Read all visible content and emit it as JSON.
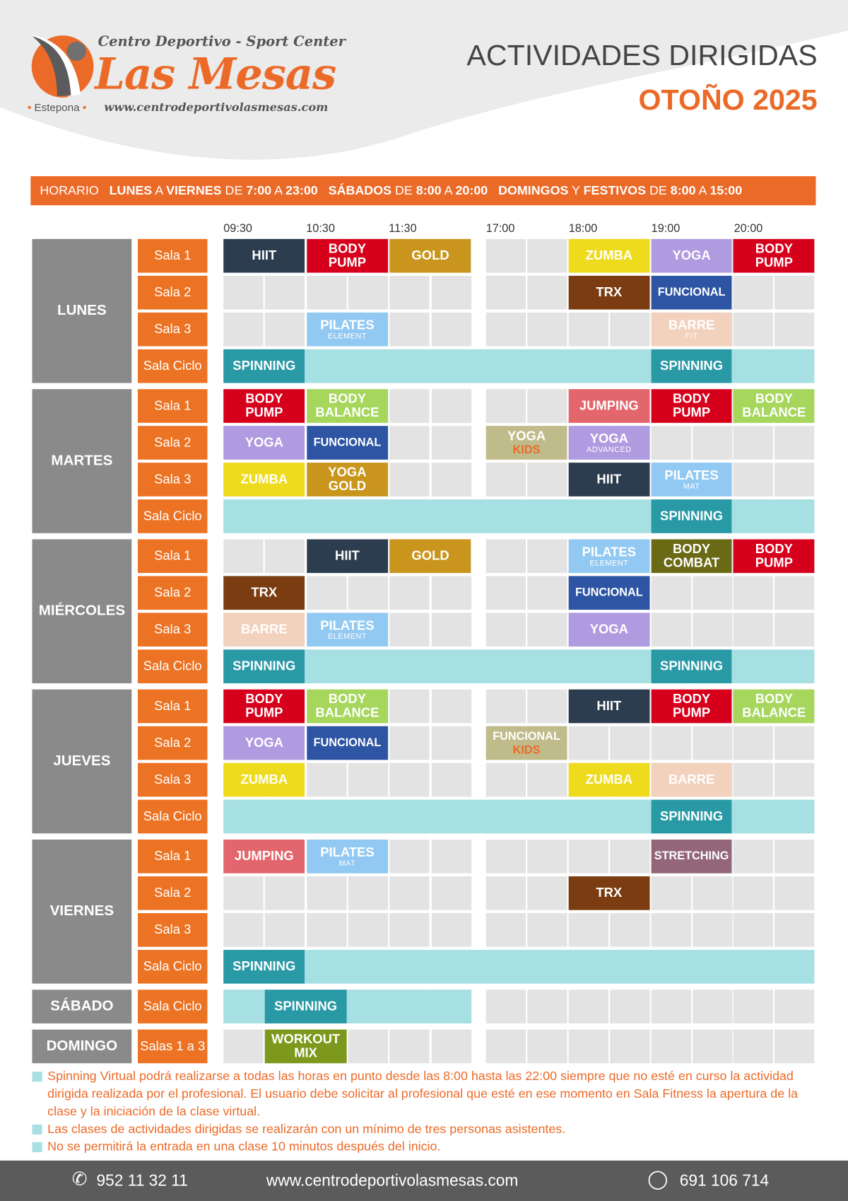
{
  "brand": {
    "tagline": "Centro Deportivo - Sport Center",
    "name": "Las Mesas",
    "location": "Estepona",
    "website": "www.centrodeportivolasmesas.com"
  },
  "title": "ACTIVIDADES DIRIGIDAS",
  "season": "OTOÑO 2025",
  "hours": {
    "label": "HORARIO",
    "weekdays": "LUNES",
    "a1": "A",
    "weekdays2": "VIERNES",
    "de1": "DE",
    "wk_time": "7:00",
    "a2": "A",
    "wk_end": "23:00",
    "sat": "SÁBADOS",
    "de2": "DE",
    "sat_time": "8:00",
    "a3": "A",
    "sat_end": "20:00",
    "sun": "DOMINGOS",
    "y": "Y",
    "fest": "FESTIVOS",
    "de3": "DE",
    "sun_time": "8:00",
    "a4": "A",
    "sun_end": "15:00"
  },
  "time_headers": [
    "09:30",
    "10:30",
    "11:30",
    "17:00",
    "18:00",
    "19:00",
    "20:00"
  ],
  "colors": {
    "HIIT": "#2b3d4f",
    "BODY PUMP": "#d6001c",
    "GOLD": "#c9951c",
    "ZUMBA": "#efdb1e",
    "YOGA": "#b09ae0",
    "TRX": "#7a3c10",
    "FUNCIONAL": "#2e55a3",
    "PILATES": "#92c9f2",
    "BARRE": "#f3d2bd",
    "SPINNING": "#2a99a6",
    "BODY BALANCE": "#a6d65c",
    "JUMPING": "#e3666c",
    "KIDS": "#c0bb8a",
    "BODY COMBAT": "#6a6914",
    "STRETCHING": "#93667a",
    "WORKOUT MIX": "#7c991d",
    "cyan": "#a6e0e3"
  },
  "schedule": [
    {
      "day": "LUNES",
      "rooms": [
        {
          "room": "Sala 1",
          "blocks": [
            {
              "s": 0,
              "label": "HIIT",
              "c": "HIIT"
            },
            {
              "s": 2,
              "label": "BODY PUMP",
              "c": "BODY PUMP"
            },
            {
              "s": 4,
              "label": "GOLD",
              "c": "GOLD"
            },
            {
              "s": 8,
              "label": "ZUMBA",
              "c": "ZUMBA"
            },
            {
              "s": 10,
              "label": "YOGA",
              "c": "YOGA"
            },
            {
              "s": 12,
              "label": "BODY PUMP",
              "c": "BODY PUMP"
            }
          ]
        },
        {
          "room": "Sala 2",
          "blocks": [
            {
              "s": 8,
              "label": "TRX",
              "c": "TRX"
            },
            {
              "s": 10,
              "label": "FUNCIONAL",
              "c": "FUNCIONAL"
            }
          ]
        },
        {
          "room": "Sala 3",
          "blocks": [
            {
              "s": 2,
              "label": "PILATES",
              "sub": "ELEMENT",
              "c": "PILATES"
            },
            {
              "s": 10,
              "label": "BARRE",
              "sub": "FIT",
              "c": "BARRE"
            }
          ]
        },
        {
          "room": "Sala Ciclo",
          "cyan": [
            0,
            13
          ],
          "blocks": [
            {
              "s": 0,
              "label": "SPINNING",
              "c": "SPINNING"
            },
            {
              "s": 10,
              "label": "SPINNING",
              "c": "SPINNING"
            }
          ]
        }
      ]
    },
    {
      "day": "MARTES",
      "rooms": [
        {
          "room": "Sala 1",
          "blocks": [
            {
              "s": 0,
              "label": "BODY PUMP",
              "c": "BODY PUMP"
            },
            {
              "s": 2,
              "label": "BODY BALANCE",
              "c": "BODY BALANCE"
            },
            {
              "s": 8,
              "label": "JUMPING",
              "c": "JUMPING"
            },
            {
              "s": 10,
              "label": "BODY PUMP",
              "c": "BODY PUMP"
            },
            {
              "s": 12,
              "label": "BODY BALANCE",
              "c": "BODY BALANCE"
            }
          ]
        },
        {
          "room": "Sala 2",
          "blocks": [
            {
              "s": 0,
              "label": "YOGA",
              "c": "YOGA"
            },
            {
              "s": 2,
              "label": "FUNCIONAL",
              "c": "FUNCIONAL"
            },
            {
              "s": 6,
              "label": "YOGA",
              "kids": "KIDS",
              "c": "KIDS"
            },
            {
              "s": 8,
              "label": "YOGA",
              "sub": "ADVANCED",
              "c": "YOGA"
            }
          ]
        },
        {
          "room": "Sala 3",
          "blocks": [
            {
              "s": 0,
              "label": "ZUMBA",
              "c": "ZUMBA"
            },
            {
              "s": 2,
              "label": "YOGA GOLD",
              "c": "GOLD"
            },
            {
              "s": 8,
              "label": "HIIT",
              "c": "HIIT"
            },
            {
              "s": 10,
              "label": "PILATES",
              "sub": "MAT",
              "c": "PILATES"
            }
          ]
        },
        {
          "room": "Sala Ciclo",
          "cyan": [
            0,
            13
          ],
          "blocks": [
            {
              "s": 10,
              "label": "SPINNING",
              "c": "SPINNING"
            }
          ]
        }
      ]
    },
    {
      "day": "MIÉRCOLES",
      "rooms": [
        {
          "room": "Sala 1",
          "blocks": [
            {
              "s": 2,
              "label": "HIIT",
              "c": "HIIT"
            },
            {
              "s": 4,
              "label": "GOLD",
              "c": "GOLD"
            },
            {
              "s": 8,
              "label": "PILATES",
              "sub": "ELEMENT",
              "c": "PILATES"
            },
            {
              "s": 10,
              "label": "BODY COMBAT",
              "c": "BODY COMBAT"
            },
            {
              "s": 12,
              "label": "BODY PUMP",
              "c": "BODY PUMP"
            }
          ]
        },
        {
          "room": "Sala 2",
          "blocks": [
            {
              "s": 0,
              "label": "TRX",
              "c": "TRX"
            },
            {
              "s": 8,
              "label": "FUNCIONAL",
              "c": "FUNCIONAL"
            }
          ]
        },
        {
          "room": "Sala 3",
          "blocks": [
            {
              "s": 0,
              "label": "BARRE",
              "c": "BARRE"
            },
            {
              "s": 2,
              "label": "PILATES",
              "sub": "ELEMENT",
              "c": "PILATES"
            },
            {
              "s": 8,
              "label": "YOGA",
              "c": "YOGA"
            }
          ]
        },
        {
          "room": "Sala Ciclo",
          "cyan": [
            0,
            13
          ],
          "blocks": [
            {
              "s": 0,
              "label": "SPINNING",
              "c": "SPINNING"
            },
            {
              "s": 10,
              "label": "SPINNING",
              "c": "SPINNING"
            }
          ]
        }
      ]
    },
    {
      "day": "JUEVES",
      "rooms": [
        {
          "room": "Sala 1",
          "blocks": [
            {
              "s": 0,
              "label": "BODY PUMP",
              "c": "BODY PUMP"
            },
            {
              "s": 2,
              "label": "BODY BALANCE",
              "c": "BODY BALANCE"
            },
            {
              "s": 8,
              "label": "HIIT",
              "c": "HIIT"
            },
            {
              "s": 10,
              "label": "BODY PUMP",
              "c": "BODY PUMP"
            },
            {
              "s": 12,
              "label": "BODY BALANCE",
              "c": "BODY BALANCE"
            }
          ]
        },
        {
          "room": "Sala 2",
          "blocks": [
            {
              "s": 0,
              "label": "YOGA",
              "c": "YOGA"
            },
            {
              "s": 2,
              "label": "FUNCIONAL",
              "c": "FUNCIONAL"
            },
            {
              "s": 6,
              "label": "FUNCIONAL",
              "kids": "KIDS",
              "c": "KIDS"
            }
          ]
        },
        {
          "room": "Sala 3",
          "blocks": [
            {
              "s": 0,
              "label": "ZUMBA",
              "c": "ZUMBA"
            },
            {
              "s": 8,
              "label": "ZUMBA",
              "c": "ZUMBA"
            },
            {
              "s": 10,
              "label": "BARRE",
              "c": "BARRE"
            }
          ]
        },
        {
          "room": "Sala Ciclo",
          "cyan": [
            0,
            13
          ],
          "blocks": [
            {
              "s": 10,
              "label": "SPINNING",
              "c": "SPINNING"
            }
          ]
        }
      ]
    },
    {
      "day": "VIERNES",
      "rooms": [
        {
          "room": "Sala 1",
          "blocks": [
            {
              "s": 0,
              "label": "JUMPING",
              "c": "JUMPING"
            },
            {
              "s": 2,
              "label": "PILATES",
              "sub": "MAT",
              "c": "PILATES"
            },
            {
              "s": 10,
              "label": "STRETCHING",
              "c": "STRETCHING"
            }
          ]
        },
        {
          "room": "Sala 2",
          "blocks": [
            {
              "s": 8,
              "label": "TRX",
              "c": "TRX"
            }
          ]
        },
        {
          "room": "Sala 3",
          "blocks": []
        },
        {
          "room": "Sala Ciclo",
          "cyan": [
            0,
            13
          ],
          "blocks": [
            {
              "s": 0,
              "label": "SPINNING",
              "c": "SPINNING"
            }
          ]
        }
      ]
    },
    {
      "day": "SÁBADO",
      "rooms": [
        {
          "room": "Sala Ciclo",
          "cyan": [
            0,
            5
          ],
          "blocks": [
            {
              "s": 1,
              "label": "SPINNING",
              "c": "SPINNING"
            }
          ]
        }
      ]
    },
    {
      "day": "DOMINGO",
      "rooms": [
        {
          "room": "Salas 1 a 3",
          "blocks": [
            {
              "s": 1,
              "label": "WORKOUT MIX",
              "c": "WORKOUT MIX"
            }
          ]
        }
      ]
    }
  ],
  "notes": [
    "Spinning Virtual podrá realizarse a todas las horas en punto desde las 8:00 hasta las 22:00 siempre que no esté en curso la actividad dirigida realizada por el profesional. El usuario debe solicitar al profesional que esté en ese momento en Sala Fitness la apertura de la clase y la iniciación de la clase virtual.",
    "Las clases de actividades dirigidas se realizarán con un mínimo de tres personas asistentes.",
    "No se permitirá la entrada en una clase 10 minutos después del inicio."
  ],
  "footer": {
    "phone": "952 11 32 11",
    "website": "www.centrodeportivolasmesas.com",
    "whatsapp": "691 106 714"
  }
}
